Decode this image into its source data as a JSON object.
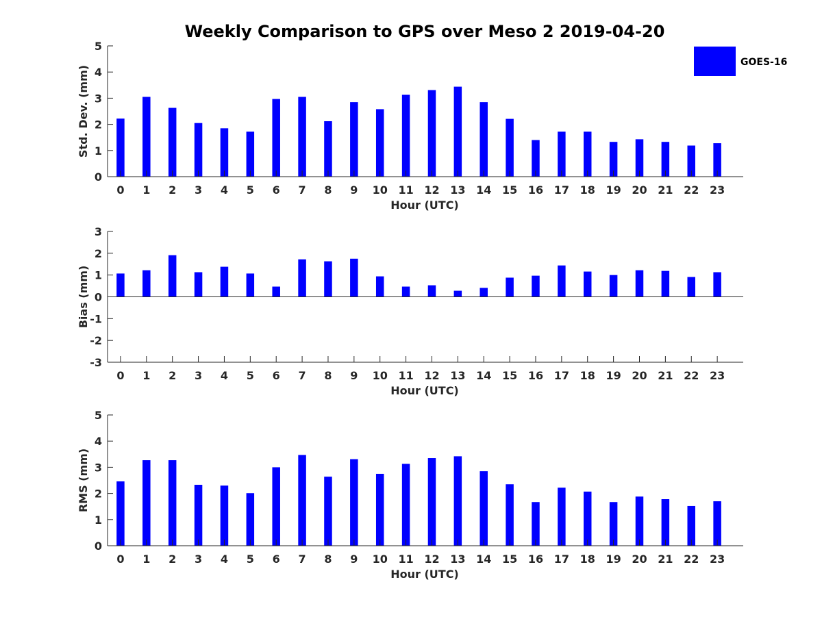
{
  "chart_data": {
    "type": "bar",
    "title": "Weekly Comparison to GPS over Meso 2 2019-04-20",
    "colors": {
      "series": "#0000ff",
      "axis": "#262626"
    },
    "legend": {
      "entries": [
        "GOES-16"
      ],
      "placement": "top-right"
    },
    "panels": [
      {
        "name": "std-dev",
        "xlabel": "Hour (UTC)",
        "ylabel": "Std. Dev. (mm)",
        "ylim": [
          0,
          5
        ],
        "yticks": [
          "0",
          "1",
          "2",
          "3",
          "4",
          "5"
        ],
        "categories": [
          "0",
          "1",
          "2",
          "3",
          "4",
          "5",
          "6",
          "7",
          "8",
          "9",
          "10",
          "11",
          "12",
          "13",
          "14",
          "15",
          "16",
          "17",
          "18",
          "19",
          "20",
          "21",
          "22",
          "23"
        ],
        "series": [
          {
            "name": "GOES-16",
            "values": [
              2.22,
              3.05,
              2.63,
              2.05,
              1.85,
              1.72,
              2.97,
              3.05,
              2.12,
              2.85,
              2.58,
              3.13,
              3.31,
              3.44,
              2.85,
              2.21,
              1.4,
              1.72,
              1.72,
              1.33,
              1.43,
              1.33,
              1.19,
              1.28
            ]
          }
        ]
      },
      {
        "name": "bias",
        "xlabel": "Hour (UTC)",
        "ylabel": "Bias (mm)",
        "ylim": [
          -3,
          3
        ],
        "yticks": [
          "-3",
          "-2",
          "-1",
          "0",
          "1",
          "2",
          "3"
        ],
        "categories": [
          "0",
          "1",
          "2",
          "3",
          "4",
          "5",
          "6",
          "7",
          "8",
          "9",
          "10",
          "11",
          "12",
          "13",
          "14",
          "15",
          "16",
          "17",
          "18",
          "19",
          "20",
          "21",
          "22",
          "23"
        ],
        "series": [
          {
            "name": "GOES-16",
            "values": [
              1.07,
              1.22,
              1.91,
              1.13,
              1.38,
              1.07,
              0.47,
              1.72,
              1.63,
              1.75,
              0.94,
              0.47,
              0.53,
              0.28,
              0.41,
              0.88,
              0.97,
              1.44,
              1.16,
              1.0,
              1.22,
              1.19,
              0.91,
              1.13
            ]
          }
        ]
      },
      {
        "name": "rms",
        "xlabel": "Hour (UTC)",
        "ylabel": "RMS (mm)",
        "ylim": [
          0,
          5
        ],
        "yticks": [
          "0",
          "1",
          "2",
          "3",
          "4",
          "5"
        ],
        "categories": [
          "0",
          "1",
          "2",
          "3",
          "4",
          "5",
          "6",
          "7",
          "8",
          "9",
          "10",
          "11",
          "12",
          "13",
          "14",
          "15",
          "16",
          "17",
          "18",
          "19",
          "20",
          "21",
          "22",
          "23"
        ],
        "series": [
          {
            "name": "GOES-16",
            "values": [
              2.46,
              3.27,
              3.27,
              2.33,
              2.3,
              2.01,
              3.0,
              3.47,
              2.64,
              3.31,
              2.75,
              3.13,
              3.35,
              3.42,
              2.85,
              2.35,
              1.67,
              2.22,
              2.07,
              1.67,
              1.88,
              1.78,
              1.52,
              1.7
            ]
          }
        ]
      }
    ]
  }
}
